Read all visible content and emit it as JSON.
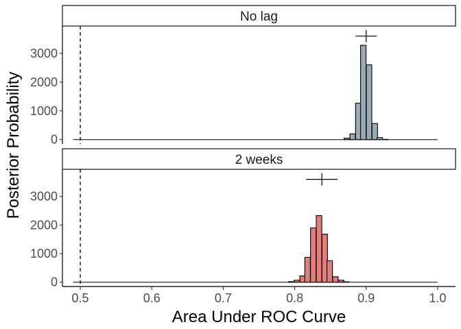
{
  "chart_data": {
    "type": "bar",
    "xlabel": "Area Under ROC Curve",
    "ylabel": "Posterior Probability",
    "xlim": [
      0.475,
      1.025
    ],
    "ylim": [
      -150,
      3950
    ],
    "x_ticks": [
      0.5,
      0.6,
      0.7,
      0.8,
      0.9,
      1.0
    ],
    "x_tick_labels": [
      "0.5",
      "0.6",
      "0.7",
      "0.8",
      "0.9",
      "1.0"
    ],
    "y_ticks": [
      0,
      1000,
      2000,
      3000
    ],
    "y_tick_labels": [
      "0",
      "1000",
      "2000",
      "3000"
    ],
    "reference_line_x": 0.5,
    "bin_width": 0.0077,
    "grid": false,
    "panels": [
      {
        "label": "No lag",
        "color": "#9aabb4",
        "interval": {
          "center": 0.9,
          "low": 0.885,
          "high": 0.915,
          "y": 3600
        },
        "bins": [
          0.873,
          0.881,
          0.889,
          0.896,
          0.904,
          0.912,
          0.919,
          0.927
        ],
        "counts": [
          50,
          200,
          1270,
          3280,
          2600,
          560,
          70,
          10
        ]
      },
      {
        "label": "2 weeks",
        "color": "#e47c7a",
        "interval": {
          "center": 0.838,
          "low": 0.816,
          "high": 0.86,
          "y": 3600
        },
        "bins": [
          0.795,
          0.803,
          0.811,
          0.818,
          0.826,
          0.834,
          0.842,
          0.849,
          0.857,
          0.865,
          0.872
        ],
        "counts": [
          20,
          70,
          220,
          870,
          1900,
          2330,
          1680,
          750,
          190,
          70,
          15
        ]
      }
    ]
  }
}
